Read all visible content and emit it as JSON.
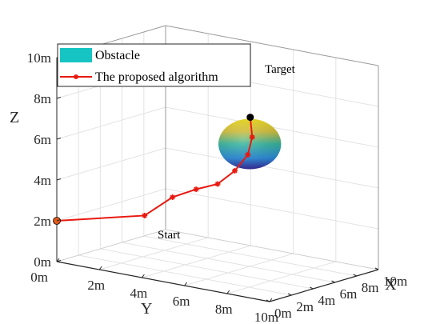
{
  "chart_data": {
    "type": "line3d",
    "title": "",
    "xlabel": "X",
    "ylabel": "Y",
    "zlabel": "Z",
    "xlim": [
      0,
      10
    ],
    "ylim": [
      0,
      10
    ],
    "zlim": [
      0,
      10
    ],
    "x_ticks": [
      "0m",
      "2m",
      "4m",
      "6m",
      "8m",
      "10m"
    ],
    "y_ticks": [
      "0m",
      "2m",
      "4m",
      "6m",
      "8m",
      "10m"
    ],
    "z_ticks": [
      "0m",
      "2m",
      "4m",
      "6m",
      "8m",
      "10m"
    ],
    "grid": true,
    "legend": {
      "position": "top-left",
      "entries": [
        "Obstacle",
        "The proposed algorithm"
      ]
    },
    "series": [
      {
        "name": "The proposed algorithm",
        "color": "#e8190f",
        "marker": "asterisk",
        "points": [
          {
            "x": 0.0,
            "y": 0.0,
            "z": 2.0
          },
          {
            "x": 2.2,
            "y": 3.0,
            "z": 2.5
          },
          {
            "x": 3.2,
            "y": 3.8,
            "z": 3.4
          },
          {
            "x": 4.0,
            "y": 4.5,
            "z": 3.8
          },
          {
            "x": 5.0,
            "y": 5.0,
            "z": 4.0
          },
          {
            "x": 5.8,
            "y": 5.4,
            "z": 4.6
          },
          {
            "x": 6.6,
            "y": 5.6,
            "z": 5.3
          },
          {
            "x": 7.4,
            "y": 5.4,
            "z": 6.0
          },
          {
            "x": 8.0,
            "y": 5.0,
            "z": 6.8
          }
        ]
      }
    ],
    "obstacle": {
      "name": "Obstacle",
      "shape": "sphere",
      "center": {
        "x": 6.0,
        "y": 6.0,
        "z": 6.0
      },
      "radius": 1.2,
      "colormap": "parula"
    },
    "annotations": {
      "start_label": "Start",
      "target_label": "Target",
      "start_color": "#e05a1a",
      "target_color": "#000000"
    }
  }
}
